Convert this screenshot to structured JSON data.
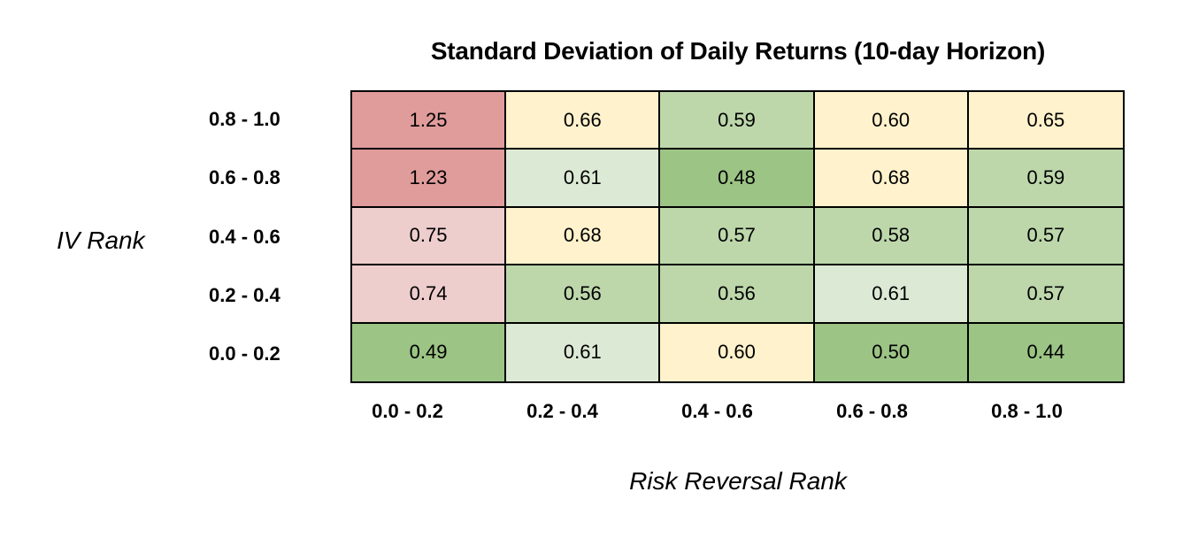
{
  "chart_data": {
    "type": "heatmap",
    "title": "Standard Deviation of Daily Returns (10-day Horizon)",
    "xlabel": "Risk Reversal Rank",
    "ylabel": "IV Rank",
    "x_categories": [
      "0.0 - 0.2",
      "0.2 - 0.4",
      "0.4 - 0.6",
      "0.6 - 0.8",
      "0.8 - 1.0"
    ],
    "y_categories": [
      "0.8 - 1.0",
      "0.6 - 0.8",
      "0.4 - 0.6",
      "0.2 - 0.4",
      "0.0 - 0.2"
    ],
    "values": [
      [
        "1.25",
        "0.66",
        "0.59",
        "0.60",
        "0.65"
      ],
      [
        "1.23",
        "0.61",
        "0.48",
        "0.68",
        "0.59"
      ],
      [
        "0.75",
        "0.68",
        "0.57",
        "0.58",
        "0.57"
      ],
      [
        "0.74",
        "0.56",
        "0.56",
        "0.61",
        "0.57"
      ],
      [
        "0.49",
        "0.61",
        "0.60",
        "0.50",
        "0.44"
      ]
    ],
    "cell_colors": [
      [
        "#e09c9b",
        "#fff2cc",
        "#bdd7ab",
        "#fff2cc",
        "#fff2cc"
      ],
      [
        "#e09c9b",
        "#dce9d4",
        "#9cc485",
        "#fff2cc",
        "#bdd7ab"
      ],
      [
        "#eecdcd",
        "#fff2cc",
        "#bdd7ab",
        "#bdd7ab",
        "#bdd7ab"
      ],
      [
        "#eecdcd",
        "#bdd7ab",
        "#bdd7ab",
        "#dce9d4",
        "#bdd7ab"
      ],
      [
        "#9cc485",
        "#dce9d4",
        "#fff2cc",
        "#9cc485",
        "#9cc485"
      ]
    ],
    "grid": true
  }
}
